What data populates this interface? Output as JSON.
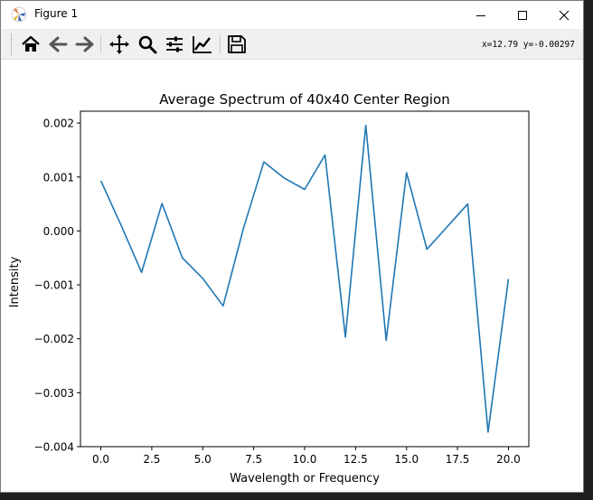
{
  "window": {
    "title": "Figure 1"
  },
  "toolbar": {
    "buttons": [
      {
        "icon": "home-icon",
        "name": "home-button"
      },
      {
        "icon": "back-arrow-icon",
        "name": "back-button"
      },
      {
        "icon": "forward-arrow-icon",
        "name": "forward-button"
      },
      {
        "icon": "pan-icon",
        "name": "pan-button"
      },
      {
        "icon": "zoom-icon",
        "name": "zoom-button"
      },
      {
        "icon": "subplots-icon",
        "name": "subplots-button"
      },
      {
        "icon": "edit-axes-icon",
        "name": "customize-button"
      },
      {
        "icon": "save-icon",
        "name": "save-button"
      }
    ],
    "coords": "x=12.79 y=-0.00297"
  },
  "chart_data": {
    "type": "line",
    "title": "Average Spectrum of 40x40 Center Region",
    "xlabel": "Wavelength or Frequency",
    "ylabel": "Intensity",
    "xlim": [
      -1.0,
      21.0
    ],
    "ylim": [
      -0.004,
      0.00222
    ],
    "x_ticks": [
      0.0,
      2.5,
      5.0,
      7.5,
      10.0,
      12.5,
      15.0,
      17.5,
      20.0
    ],
    "x_tick_labels": [
      "0.0",
      "2.5",
      "5.0",
      "7.5",
      "10.0",
      "12.5",
      "15.0",
      "17.5",
      "20.0"
    ],
    "y_ticks": [
      -0.004,
      -0.003,
      -0.002,
      -0.001,
      0.0,
      0.001,
      0.002
    ],
    "y_tick_labels": [
      "−0.004",
      "−0.003",
      "−0.002",
      "−0.001",
      "0.000",
      "0.001",
      "0.002"
    ],
    "grid": false,
    "series": [
      {
        "color": "#1f77b4",
        "x": [
          0,
          1,
          2,
          3,
          4,
          5,
          6,
          7,
          8,
          9,
          10,
          11,
          12,
          13,
          14,
          15,
          16,
          17,
          18,
          19,
          20
        ],
        "values": [
          0.00093,
          0.0001,
          -0.00077,
          0.00051,
          -0.0005,
          -0.00088,
          -0.00139,
          5e-05,
          0.00128,
          0.00098,
          0.00077,
          0.00141,
          -0.00197,
          0.00196,
          -0.00203,
          0.00108,
          -0.00034,
          8e-05,
          0.0005,
          -0.00373,
          -0.00089
        ]
      }
    ]
  }
}
